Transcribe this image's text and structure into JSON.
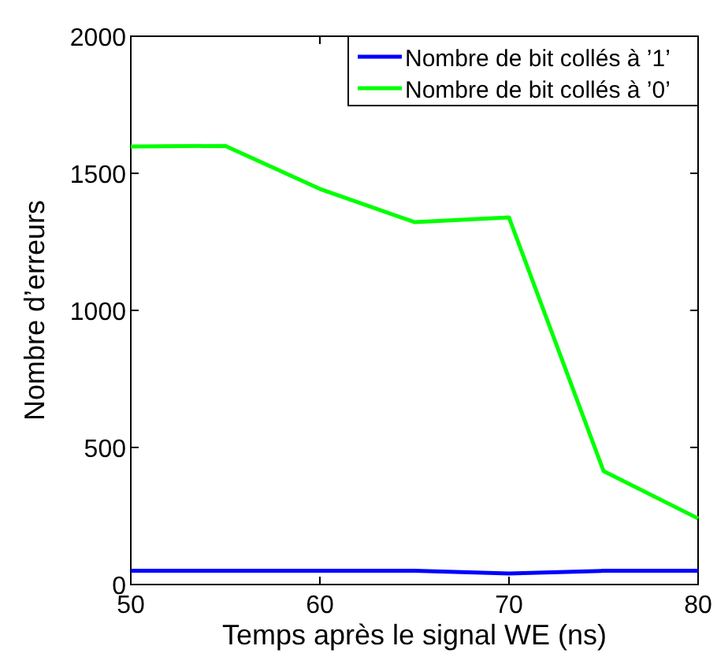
{
  "chart_data": {
    "type": "line",
    "xlabel": "Temps après le signal WE (ns)",
    "ylabel": "Nombre d’erreurs",
    "x": [
      50,
      55,
      60,
      65,
      70,
      75,
      80
    ],
    "xlim": [
      50,
      80
    ],
    "xticks": [
      50,
      60,
      70,
      80
    ],
    "ylim": [
      0,
      2000
    ],
    "yticks": [
      0,
      500,
      1000,
      1500,
      2000
    ],
    "legend": "top right",
    "series": [
      {
        "name": "Nombre de bit collés à ’1’",
        "color": "#0000ff",
        "values": [
          50,
          50,
          50,
          50,
          40,
          50,
          50
        ]
      },
      {
        "name": "Nombre de bit collés à ’0’",
        "color": "#00ff00",
        "values": [
          1598,
          1600,
          1443,
          1322,
          1339,
          414,
          241
        ]
      }
    ]
  }
}
